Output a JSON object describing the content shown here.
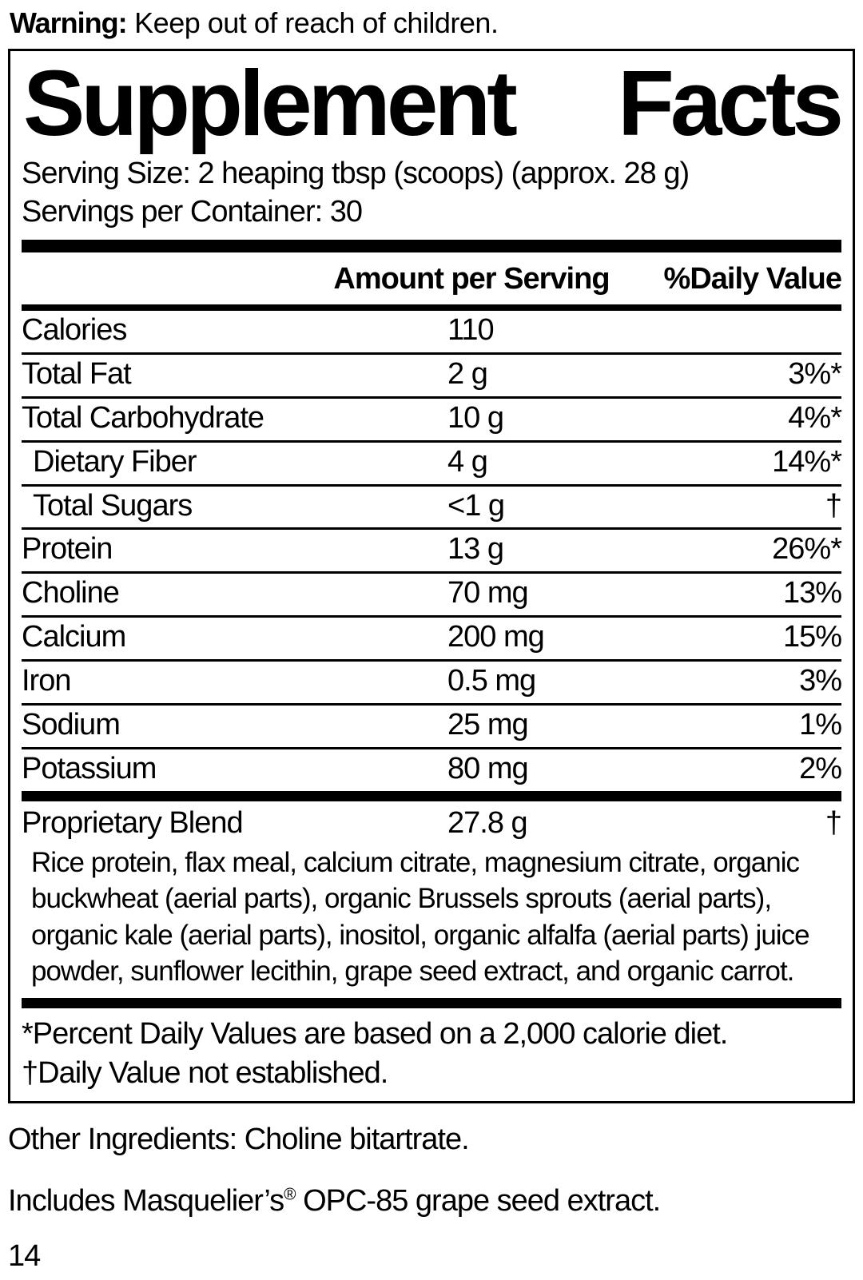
{
  "colors": {
    "text": "#000000",
    "background": "#ffffff"
  },
  "warning": {
    "label": "Warning:",
    "text": "Keep out of reach of children."
  },
  "panel": {
    "title_word1": "Supplement",
    "title_word2": "Facts",
    "serving_size": "Serving Size: 2 heaping tbsp (scoops) (approx. 28 g)",
    "servings_per_container": "Servings per Container: 30",
    "col_amount": "Amount per Serving",
    "col_dv": "%Daily Value",
    "rows": [
      {
        "name": "Calories",
        "amount": "110",
        "dv": "",
        "indent": false
      },
      {
        "name": "Total Fat",
        "amount": "2 g",
        "dv": "3%*",
        "indent": false
      },
      {
        "name": "Total Carbohydrate",
        "amount": "10 g",
        "dv": "4%*",
        "indent": false
      },
      {
        "name": "Dietary Fiber",
        "amount": "4 g",
        "dv": "14%*",
        "indent": true
      },
      {
        "name": "Total Sugars",
        "amount": "<1 g",
        "dv": "†",
        "indent": true
      },
      {
        "name": "Protein",
        "amount": "13 g",
        "dv": "26%*",
        "indent": false
      },
      {
        "name": "Choline",
        "amount": "70 mg",
        "dv": "13%",
        "indent": false
      },
      {
        "name": "Calcium",
        "amount": "200 mg",
        "dv": "15%",
        "indent": false
      },
      {
        "name": "Iron",
        "amount": "0.5 mg",
        "dv": "3%",
        "indent": false
      },
      {
        "name": "Sodium",
        "amount": "25 mg",
        "dv": "1%",
        "indent": false
      },
      {
        "name": "Potassium",
        "amount": "80 mg",
        "dv": "2%",
        "indent": false
      }
    ],
    "blend": {
      "name": "Proprietary Blend",
      "amount": "27.8 g",
      "dv": "†",
      "description": "Rice protein, flax meal, calcium citrate, magnesium citrate, organic buckwheat (aerial parts), organic Brussels sprouts (aerial parts), organic kale (aerial parts), inositol, organic alfalfa (aerial parts) juice powder, sunflower lecithin, grape seed extract, and organic carrot."
    },
    "footnotes": [
      "*Percent Daily Values are based on a 2,000 calorie diet.",
      "†Daily Value not established."
    ]
  },
  "other_ingredients": "Other Ingredients: Choline bitartrate.",
  "includes": {
    "prefix": "Includes Masquelier’s",
    "mark": "®",
    "suffix": " OPC-85 grape seed extract."
  },
  "page_number": "14"
}
